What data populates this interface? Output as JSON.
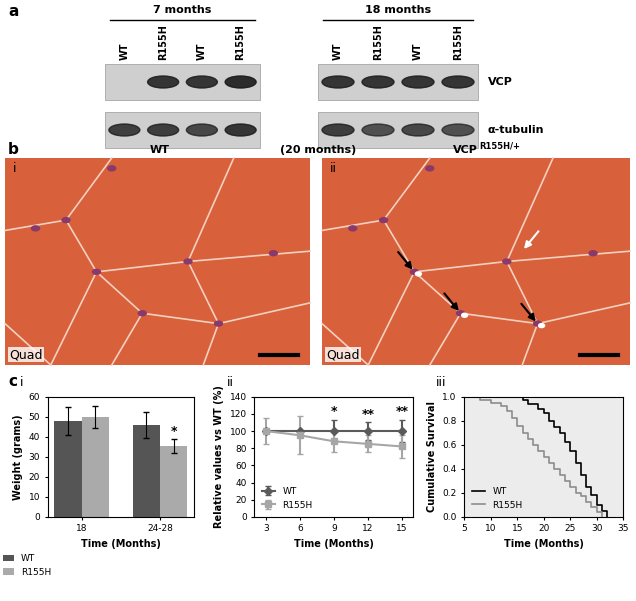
{
  "blot": {
    "label": "a",
    "groups": [
      {
        "title": "7 months",
        "lanes": [
          "WT",
          "R155H",
          "WT",
          "R155H"
        ]
      },
      {
        "title": "18 months",
        "lanes": [
          "WT",
          "R155H",
          "WT",
          "R155H"
        ]
      }
    ],
    "rows": [
      "VCP",
      "α-tubulin"
    ]
  },
  "histology": {
    "label": "b",
    "middle": "(20 months)",
    "panels": [
      {
        "number": "i",
        "title": "WT",
        "tissue": "Quad"
      },
      {
        "number": "ii",
        "title_base": "VCP",
        "title_superscript": "R155H/+",
        "tissue": "Quad"
      }
    ]
  },
  "panel_label": "c",
  "chart_data": [
    {
      "type": "bar",
      "number": "i",
      "categories": [
        "18",
        "24-28"
      ],
      "series": [
        {
          "name": "WT",
          "color": "#555555",
          "values": [
            48,
            46
          ],
          "errors": [
            7,
            6.5
          ]
        },
        {
          "name": "R155H",
          "color": "#aaaaaa",
          "values": [
            50,
            35.5
          ],
          "errors": [
            5.5,
            3.5
          ]
        }
      ],
      "annotations": [
        {
          "text": "*",
          "x": "24-28",
          "series": "R155H"
        }
      ],
      "x_label": "Time (Months)",
      "y_label": "Weight (grams)",
      "ylim": [
        0,
        60
      ],
      "yticks": [
        0,
        10,
        20,
        30,
        40,
        50,
        60
      ],
      "grid": false,
      "legend": "lower left"
    },
    {
      "type": "line",
      "number": "ii",
      "x": [
        3,
        6,
        9,
        12,
        15
      ],
      "series": [
        {
          "name": "WT",
          "color": "#5a5a5a",
          "marker": "diamond",
          "values": [
            100,
            100,
            100,
            100,
            100
          ],
          "errors": [
            0,
            0,
            13,
            10,
            13
          ]
        },
        {
          "name": "R155H",
          "color": "#a6a6a6",
          "marker": "square",
          "values": [
            100,
            95,
            88,
            85,
            82
          ],
          "errors": [
            15,
            22,
            13,
            10,
            13
          ]
        }
      ],
      "annotations": [
        {
          "text": "*",
          "x": 9
        },
        {
          "text": "**",
          "x": 12
        },
        {
          "text": "**",
          "x": 15
        }
      ],
      "x_label": "Time (Months)",
      "y_label": "Relative values vs WT (%)",
      "xlim": [
        2,
        16
      ],
      "xticks": [
        3,
        6,
        9,
        12,
        15
      ],
      "ylim": [
        0,
        140
      ],
      "yticks": [
        0,
        20,
        40,
        60,
        80,
        100,
        120,
        140
      ],
      "grid": false,
      "legend": "lower left"
    },
    {
      "type": "step",
      "number": "iii",
      "series": [
        {
          "name": "WT",
          "color": "#000000",
          "x": [
            7,
            16,
            17,
            19,
            20,
            21,
            22,
            23,
            24,
            25,
            26,
            27,
            28,
            29,
            30,
            31,
            32
          ],
          "values": [
            1.0,
            0.97,
            0.94,
            0.9,
            0.86,
            0.8,
            0.75,
            0.7,
            0.62,
            0.55,
            0.45,
            0.35,
            0.25,
            0.18,
            0.1,
            0.05,
            0.0
          ]
        },
        {
          "name": "R155H",
          "color": "#8c8c8c",
          "x": [
            7,
            8,
            10,
            12,
            13,
            14,
            15,
            16,
            17,
            18,
            19,
            20,
            21,
            22,
            23,
            24,
            25,
            26,
            27,
            28,
            29,
            30,
            31
          ],
          "values": [
            1.0,
            0.97,
            0.95,
            0.92,
            0.88,
            0.82,
            0.76,
            0.7,
            0.65,
            0.6,
            0.55,
            0.5,
            0.45,
            0.4,
            0.35,
            0.3,
            0.25,
            0.2,
            0.17,
            0.12,
            0.08,
            0.04,
            0.0
          ]
        }
      ],
      "x_label": "Time (Months)",
      "y_label": "Cumulative Survival",
      "xlim": [
        5,
        35
      ],
      "xticks": [
        5,
        10,
        15,
        20,
        25,
        30,
        35
      ],
      "ylim": [
        0,
        1.0
      ],
      "yticks": [
        0.0,
        0.2,
        0.4,
        0.6,
        0.8,
        1.0
      ],
      "grid": false,
      "legend": "lower left"
    }
  ]
}
